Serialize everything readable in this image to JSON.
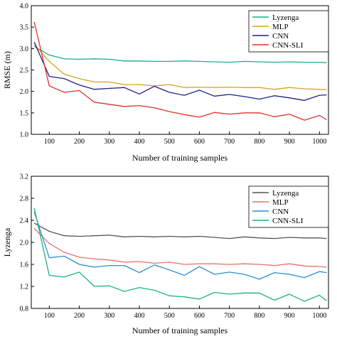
{
  "chart_data": [
    {
      "type": "line",
      "xlabel": "Number of training samples",
      "ylabel": "RMSE (m)",
      "xlim": [
        40,
        1030
      ],
      "ylim": [
        1.0,
        4.0
      ],
      "xticks": [
        100,
        200,
        300,
        400,
        500,
        600,
        700,
        800,
        900,
        1000
      ],
      "yticks": [
        1.0,
        1.5,
        2.0,
        2.5,
        3.0,
        3.5,
        4.0
      ],
      "yticks_text": [
        "1.0",
        "1.5",
        "2.0",
        "2.5",
        "3.0",
        "3.5",
        "4.0"
      ],
      "grid": false,
      "legend_position": "top-right",
      "x": [
        50,
        100,
        150,
        200,
        250,
        300,
        350,
        400,
        450,
        500,
        550,
        600,
        650,
        700,
        750,
        800,
        850,
        900,
        950,
        1000,
        1024
      ],
      "series": [
        {
          "name": "Lyzenga",
          "color": "#1aaf8c",
          "values": [
            3.05,
            2.85,
            2.76,
            2.75,
            2.76,
            2.75,
            2.71,
            2.71,
            2.7,
            2.7,
            2.71,
            2.7,
            2.69,
            2.68,
            2.7,
            2.69,
            2.68,
            2.69,
            2.68,
            2.68,
            2.67
          ]
        },
        {
          "name": "MLP",
          "color": "#d6a321",
          "values": [
            3.1,
            2.7,
            2.4,
            2.3,
            2.22,
            2.22,
            2.16,
            2.16,
            2.13,
            2.16,
            2.09,
            2.1,
            2.09,
            2.1,
            2.09,
            2.09,
            2.05,
            2.09,
            2.06,
            2.05,
            2.04
          ]
        },
        {
          "name": "CNN",
          "color": "#1f1f8f",
          "values": [
            3.15,
            2.35,
            2.3,
            2.15,
            2.05,
            2.07,
            2.09,
            1.94,
            2.12,
            1.98,
            1.91,
            2.03,
            1.89,
            1.93,
            1.88,
            1.82,
            1.9,
            1.85,
            1.79,
            1.91,
            1.92
          ]
        },
        {
          "name": "CNN-SLI",
          "color": "#e0312f",
          "values": [
            3.62,
            2.13,
            1.98,
            2.02,
            1.75,
            1.7,
            1.65,
            1.67,
            1.62,
            1.53,
            1.46,
            1.4,
            1.51,
            1.47,
            1.5,
            1.5,
            1.41,
            1.47,
            1.33,
            1.44,
            1.34
          ]
        }
      ]
    },
    {
      "type": "line",
      "xlabel": "Number of training samples",
      "ylabel": "Lyzenga",
      "xlim": [
        40,
        1030
      ],
      "ylim": [
        0.8,
        3.2
      ],
      "xticks": [
        100,
        200,
        300,
        400,
        500,
        600,
        700,
        800,
        900,
        1000
      ],
      "yticks": [
        0.8,
        1.2,
        1.6,
        2.0,
        2.4,
        2.8,
        3.2
      ],
      "yticks_text": [
        "0.8",
        "1.2",
        "1.6",
        "2.0",
        "2.4",
        "2.8",
        "3.2"
      ],
      "grid": false,
      "legend_position": "top-right",
      "x": [
        50,
        100,
        150,
        200,
        250,
        300,
        350,
        400,
        450,
        500,
        550,
        600,
        650,
        700,
        750,
        800,
        850,
        900,
        950,
        1000,
        1024
      ],
      "series": [
        {
          "name": "Lyzenga",
          "color": "#555555",
          "values": [
            2.35,
            2.2,
            2.12,
            2.11,
            2.12,
            2.13,
            2.1,
            2.11,
            2.1,
            2.11,
            2.1,
            2.11,
            2.09,
            2.07,
            2.1,
            2.08,
            2.07,
            2.09,
            2.08,
            2.08,
            2.07
          ]
        },
        {
          "name": "MLP",
          "color": "#e8706a",
          "values": [
            2.25,
            1.98,
            1.82,
            1.73,
            1.7,
            1.68,
            1.64,
            1.65,
            1.62,
            1.64,
            1.6,
            1.61,
            1.61,
            1.6,
            1.61,
            1.6,
            1.58,
            1.61,
            1.57,
            1.56,
            1.55
          ]
        },
        {
          "name": "CNN",
          "color": "#2a8fcf",
          "values": [
            2.55,
            1.72,
            1.75,
            1.6,
            1.55,
            1.58,
            1.58,
            1.45,
            1.59,
            1.5,
            1.4,
            1.56,
            1.42,
            1.46,
            1.42,
            1.33,
            1.45,
            1.42,
            1.36,
            1.47,
            1.45
          ]
        },
        {
          "name": "CNN-SLI",
          "color": "#1fb08a",
          "values": [
            2.62,
            1.4,
            1.37,
            1.46,
            1.2,
            1.21,
            1.11,
            1.18,
            1.13,
            1.03,
            1.01,
            0.97,
            1.09,
            1.06,
            1.08,
            1.08,
            0.95,
            1.06,
            0.93,
            1.04,
            0.94
          ]
        }
      ]
    }
  ]
}
